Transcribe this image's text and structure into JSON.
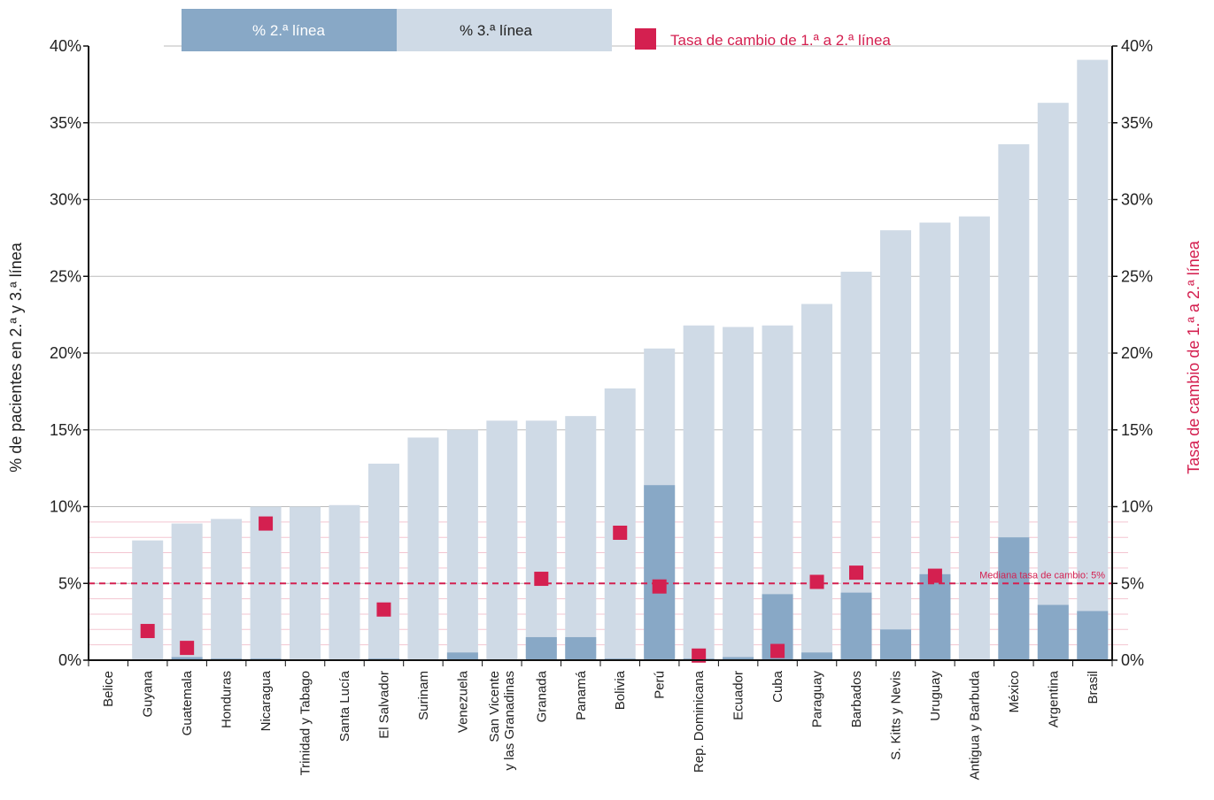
{
  "chart_data": {
    "type": "bar",
    "categories": [
      "Belice",
      "Guyana",
      "Guatemala",
      "Honduras",
      "Nicaragua",
      "Trinidad y Tabago",
      "Santa Lucía",
      "El Salvador",
      "Surinam",
      "Venezuela",
      "San Vicente\ny las Granadinas",
      "Granada",
      "Panamá",
      "Bolivia",
      "Perú",
      "Rep. Dominicana",
      "Ecuador",
      "Cuba",
      "Paraguay",
      "Barbados",
      "S. Kitts y Nevis",
      "Uruguay",
      "Antigua y Barbuda",
      "México",
      "Argentina",
      "Brasil"
    ],
    "series": [
      {
        "name": "% 2.ª línea",
        "type": "bar",
        "values": [
          0,
          0,
          0.2,
          0.1,
          0.1,
          0,
          0,
          0.1,
          0,
          0.5,
          0,
          1.5,
          1.5,
          0.1,
          11.4,
          0.1,
          0.2,
          4.3,
          0.5,
          4.4,
          2.0,
          5.6,
          0,
          8.0,
          3.6,
          3.2
        ]
      },
      {
        "name": "% 3.ª línea",
        "type": "bar",
        "values": [
          0,
          7.8,
          8.9,
          9.2,
          10.0,
          10.0,
          10.1,
          12.8,
          14.5,
          15.0,
          15.6,
          15.6,
          15.9,
          17.7,
          20.3,
          21.8,
          21.7,
          21.8,
          23.2,
          25.3,
          28.0,
          28.5,
          28.9,
          33.6,
          36.3,
          39.1
        ]
      },
      {
        "name": "Tasa de cambio de 1.ª a 2.ª línea",
        "type": "scatter",
        "values": [
          null,
          1.9,
          0.8,
          null,
          8.9,
          null,
          null,
          3.3,
          null,
          null,
          null,
          5.3,
          null,
          8.3,
          4.8,
          0.3,
          null,
          0.6,
          5.1,
          5.7,
          null,
          5.5,
          null,
          null,
          null,
          null
        ]
      }
    ],
    "ylabel": "% de pacientes en 2.ª y 3.ª línea",
    "ylabel_right": "Tasa de cambio de 1.ª a 2.ª línea",
    "ylim": [
      0,
      40
    ],
    "yticks": [
      "0%",
      "5%",
      "10%",
      "15%",
      "20%",
      "25%",
      "30%",
      "35%",
      "40%"
    ],
    "median": {
      "value": 5,
      "label": "Mediana tasa de cambio: 5%"
    },
    "legend": [
      "% 2.ª línea",
      "% 3.ª línea",
      "Tasa de cambio de 1.ª a 2.ª línea"
    ],
    "legend_position": "top",
    "grid": true,
    "colors": {
      "second": "#88a8c6",
      "third": "#cfdae6",
      "rate": "#d42050",
      "grid": "#bbbbbb",
      "minor_grid": "#f3c5d0"
    }
  }
}
